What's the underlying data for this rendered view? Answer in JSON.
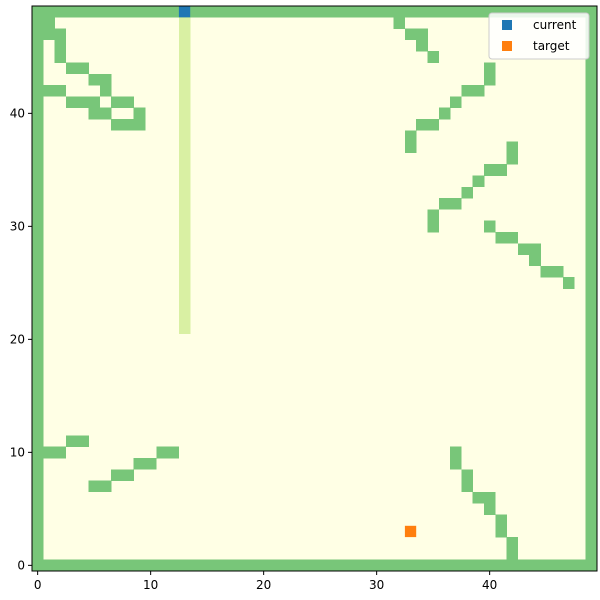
{
  "chart_data": {
    "type": "heatmap",
    "title": "",
    "xlabel": "",
    "ylabel": "",
    "xlim": [
      -0.5,
      49.5
    ],
    "ylim": [
      -0.5,
      49.5
    ],
    "x_ticks": [
      0,
      10,
      20,
      30,
      40
    ],
    "y_ticks": [
      0,
      10,
      20,
      30,
      40
    ],
    "grid": false,
    "cell_colors": {
      "empty": "#ffffe5",
      "wall": "#78c679",
      "path": "#d9f0a3"
    },
    "walls": {
      "border": {
        "x_min": 0,
        "x_max": 49,
        "y_min": 0,
        "y_max": 49
      },
      "cells": [
        [
          1,
          48
        ],
        [
          1,
          47
        ],
        [
          2,
          47
        ],
        [
          2,
          46
        ],
        [
          2,
          45
        ],
        [
          3,
          44
        ],
        [
          4,
          44
        ],
        [
          5,
          43
        ],
        [
          6,
          43
        ],
        [
          6,
          42
        ],
        [
          0,
          42
        ],
        [
          1,
          42
        ],
        [
          2,
          42
        ],
        [
          3,
          41
        ],
        [
          4,
          41
        ],
        [
          5,
          41
        ],
        [
          7,
          41
        ],
        [
          8,
          41
        ],
        [
          5,
          40
        ],
        [
          6,
          40
        ],
        [
          9,
          40
        ],
        [
          7,
          39
        ],
        [
          8,
          39
        ],
        [
          9,
          39
        ],
        [
          32,
          48
        ],
        [
          33,
          47
        ],
        [
          34,
          47
        ],
        [
          34,
          46
        ],
        [
          35,
          45
        ],
        [
          40,
          44
        ],
        [
          40,
          43
        ],
        [
          38,
          42
        ],
        [
          39,
          42
        ],
        [
          37,
          41
        ],
        [
          36,
          40
        ],
        [
          34,
          39
        ],
        [
          35,
          39
        ],
        [
          33,
          38
        ],
        [
          33,
          37
        ],
        [
          42,
          37
        ],
        [
          42,
          36
        ],
        [
          40,
          35
        ],
        [
          41,
          35
        ],
        [
          39,
          34
        ],
        [
          38,
          33
        ],
        [
          36,
          32
        ],
        [
          37,
          32
        ],
        [
          35,
          31
        ],
        [
          35,
          30
        ],
        [
          40,
          30
        ],
        [
          41,
          29
        ],
        [
          42,
          29
        ],
        [
          43,
          28
        ],
        [
          44,
          28
        ],
        [
          44,
          27
        ],
        [
          45,
          26
        ],
        [
          46,
          26
        ],
        [
          47,
          25
        ],
        [
          3,
          11
        ],
        [
          4,
          11
        ],
        [
          0,
          10
        ],
        [
          1,
          10
        ],
        [
          2,
          10
        ],
        [
          11,
          10
        ],
        [
          12,
          10
        ],
        [
          37,
          10
        ],
        [
          9,
          9
        ],
        [
          10,
          9
        ],
        [
          37,
          9
        ],
        [
          7,
          8
        ],
        [
          8,
          8
        ],
        [
          38,
          8
        ],
        [
          5,
          7
        ],
        [
          6,
          7
        ],
        [
          38,
          7
        ],
        [
          39,
          6
        ],
        [
          40,
          6
        ],
        [
          40,
          5
        ],
        [
          41,
          4
        ],
        [
          41,
          3
        ],
        [
          42,
          2
        ],
        [
          42,
          1
        ]
      ]
    },
    "path_cells": {
      "x": 13,
      "y_from": 21,
      "y_to": 48
    },
    "series": [
      {
        "name": "current",
        "color": "#1f77b4",
        "points": [
          [
            13,
            49
          ]
        ]
      },
      {
        "name": "target",
        "color": "#ff7f0e",
        "points": [
          [
            33,
            3
          ]
        ]
      }
    ],
    "legend": {
      "placement": "top-right",
      "marker": "square"
    }
  }
}
